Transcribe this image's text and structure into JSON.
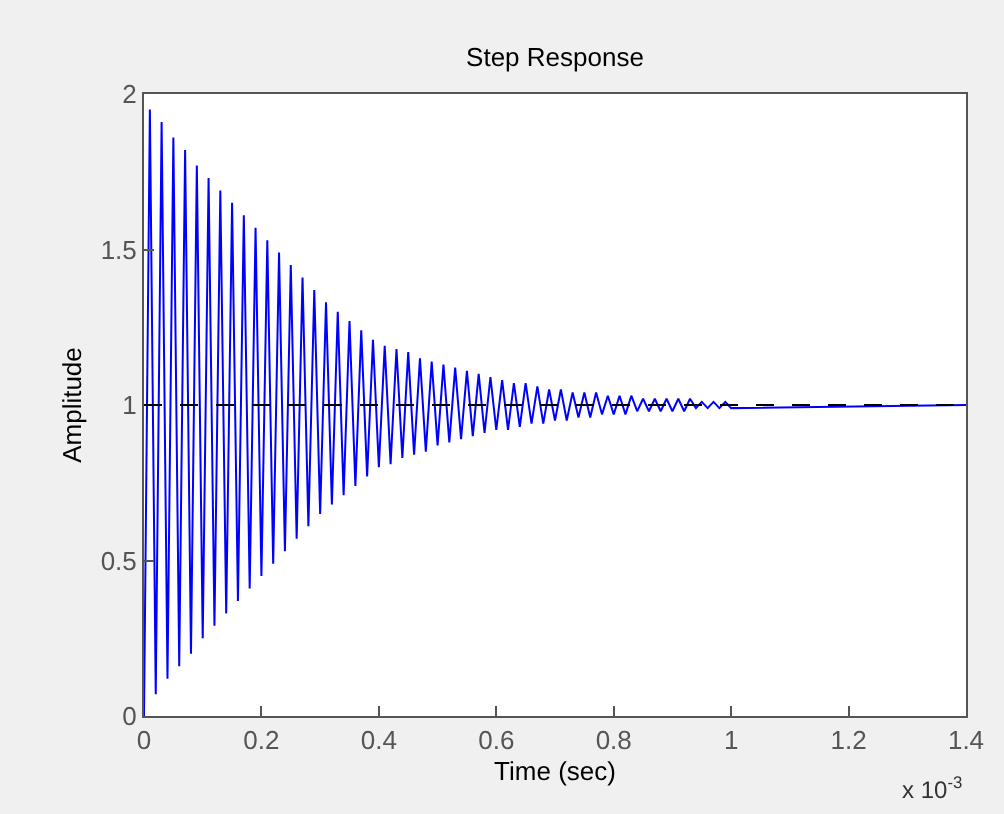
{
  "chart_data": {
    "type": "line",
    "title": "Step Response",
    "xlabel": "Time (sec)",
    "ylabel": "Amplitude",
    "x": [
      0,
      0.01,
      0.02,
      0.03,
      0.04,
      0.05,
      0.06,
      0.07,
      0.08,
      0.09,
      0.1,
      0.11,
      0.12,
      0.13,
      0.14,
      0.15,
      0.16,
      0.17,
      0.18,
      0.19,
      0.2,
      0.21,
      0.22,
      0.23,
      0.24,
      0.25,
      0.26,
      0.27,
      0.28,
      0.29,
      0.3,
      0.31,
      0.32,
      0.33,
      0.34,
      0.35,
      0.36,
      0.37,
      0.38,
      0.39,
      0.4,
      0.41,
      0.42,
      0.43,
      0.44,
      0.45,
      0.46,
      0.47,
      0.48,
      0.49,
      0.5,
      0.51,
      0.52,
      0.53,
      0.54,
      0.55,
      0.56,
      0.57,
      0.58,
      0.59,
      0.6,
      0.61,
      0.62,
      0.63,
      0.64,
      0.65,
      0.66,
      0.67,
      0.68,
      0.69,
      0.7,
      0.71,
      0.72,
      0.73,
      0.74,
      0.75,
      0.76,
      0.77,
      0.78,
      0.79,
      0.8,
      0.81,
      0.82,
      0.83,
      0.84,
      0.85,
      0.86,
      0.87,
      0.88,
      0.89,
      0.9,
      0.91,
      0.92,
      0.93,
      0.94,
      0.95,
      0.96,
      0.97,
      0.98,
      0.99,
      1,
      1.4
    ],
    "series": [
      {
        "color": "#0000ff",
        "values": [
          0,
          1.95,
          0.07,
          1.91,
          0.12,
          1.86,
          0.16,
          1.82,
          0.2,
          1.77,
          0.25,
          1.73,
          0.29,
          1.69,
          0.33,
          1.65,
          0.37,
          1.61,
          0.41,
          1.57,
          0.45,
          1.53,
          0.49,
          1.49,
          0.53,
          1.45,
          0.57,
          1.41,
          0.61,
          1.37,
          0.65,
          1.33,
          0.68,
          1.3,
          0.71,
          1.27,
          0.74,
          1.24,
          0.77,
          1.21,
          0.8,
          1.19,
          0.81,
          1.18,
          0.83,
          1.17,
          0.84,
          1.15,
          0.85,
          1.14,
          0.87,
          1.13,
          0.88,
          1.12,
          0.89,
          1.11,
          0.9,
          1.1,
          0.91,
          1.09,
          0.92,
          1.08,
          0.92,
          1.07,
          0.93,
          1.07,
          0.94,
          1.06,
          0.94,
          1.05,
          0.95,
          1.05,
          0.95,
          1.04,
          0.96,
          1.04,
          0.96,
          1.04,
          0.97,
          1.03,
          0.97,
          1.03,
          0.97,
          1.03,
          0.98,
          1.02,
          0.98,
          1.02,
          0.98,
          1.02,
          0.98,
          1.02,
          0.98,
          1.02,
          0.99,
          1.01,
          0.99,
          1.01,
          0.99,
          1.01,
          0.99,
          1
        ]
      }
    ],
    "xlim": [
      0,
      1.4
    ],
    "xticks": [
      0,
      0.2,
      0.4,
      0.6,
      0.8,
      1,
      1.2,
      1.4
    ],
    "ylim": [
      0,
      2
    ],
    "yticks": [
      0,
      0.5,
      1,
      1.5,
      2
    ],
    "ref_lines": [
      {
        "axis": "y",
        "value": 1,
        "color": "#000000",
        "line_style": "dashed"
      }
    ],
    "annotations": [
      "x 10$^{-3}$"
    ],
    "marker": "none",
    "line_style": "solid"
  }
}
